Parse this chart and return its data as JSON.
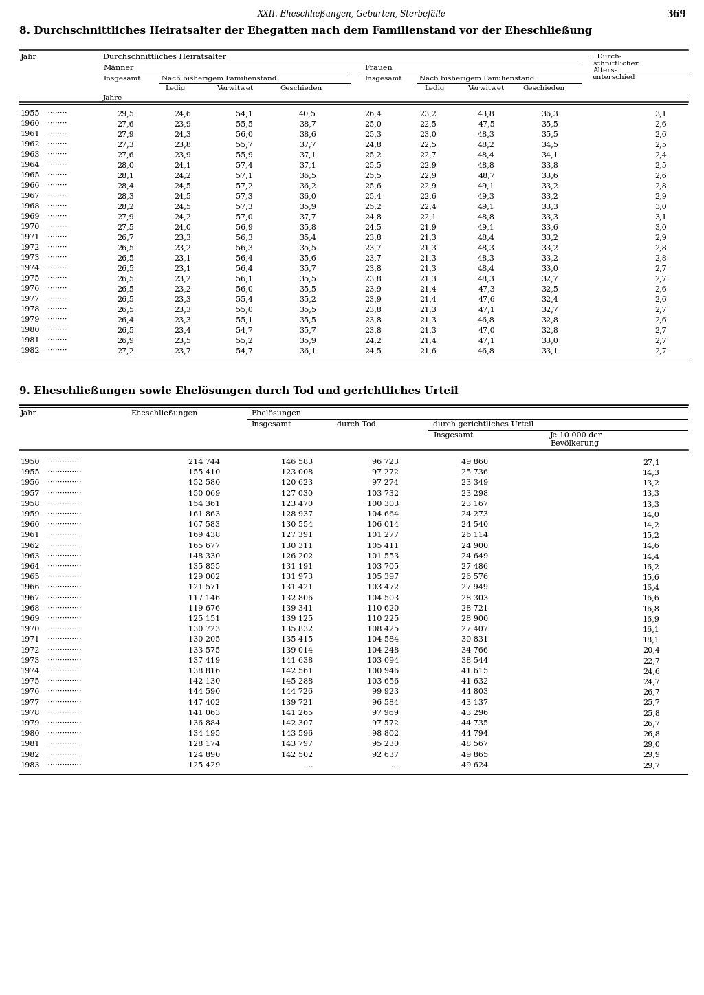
{
  "page_header": "XXII. Eheschließungen, Geburten, Sterbefälle",
  "page_number": "369",
  "table1_title": "8. Durchschnittliches Heiratsalter der Ehegatten nach dem Familienstand vor der Eheschließung",
  "table1_data": [
    [
      "1955",
      "29,5",
      "24,6",
      "54,1",
      "40,5",
      "26,4",
      "23,2",
      "43,8",
      "36,3",
      "3,1"
    ],
    [
      "1960",
      "27,6",
      "23,9",
      "55,5",
      "38,7",
      "25,0",
      "22,5",
      "47,5",
      "35,5",
      "2,6"
    ],
    [
      "1961",
      "27,9",
      "24,3",
      "56,0",
      "38,6",
      "25,3",
      "23,0",
      "48,3",
      "35,5",
      "2,6"
    ],
    [
      "1962",
      "27,3",
      "23,8",
      "55,7",
      "37,7",
      "24,8",
      "22,5",
      "48,2",
      "34,5",
      "2,5"
    ],
    [
      "1963",
      "27,6",
      "23,9",
      "55,9",
      "37,1",
      "25,2",
      "22,7",
      "48,4",
      "34,1",
      "2,4"
    ],
    [
      "1964",
      "28,0",
      "24,1",
      "57,4",
      "37,1",
      "25,5",
      "22,9",
      "48,8",
      "33,8",
      "2,5"
    ],
    [
      "1965",
      "28,1",
      "24,2",
      "57,1",
      "36,5",
      "25,5",
      "22,9",
      "48,7",
      "33,6",
      "2,6"
    ],
    [
      "1966",
      "28,4",
      "24,5",
      "57,2",
      "36,2",
      "25,6",
      "22,9",
      "49,1",
      "33,2",
      "2,8"
    ],
    [
      "1967",
      "28,3",
      "24,5",
      "57,3",
      "36,0",
      "25,4",
      "22,6",
      "49,3",
      "33,2",
      "2,9"
    ],
    [
      "1968",
      "28,2",
      "24,5",
      "57,3",
      "35,9",
      "25,2",
      "22,4",
      "49,1",
      "33,3",
      "3,0"
    ],
    [
      "1969",
      "27,9",
      "24,2",
      "57,0",
      "37,7",
      "24,8",
      "22,1",
      "48,8",
      "33,3",
      "3,1"
    ],
    [
      "1970",
      "27,5",
      "24,0",
      "56,9",
      "35,8",
      "24,5",
      "21,9",
      "49,1",
      "33,6",
      "3,0"
    ],
    [
      "1971",
      "26,7",
      "23,3",
      "56,3",
      "35,4",
      "23,8",
      "21,3",
      "48,4",
      "33,2",
      "2,9"
    ],
    [
      "1972",
      "26,5",
      "23,2",
      "56,3",
      "35,5",
      "23,7",
      "21,3",
      "48,3",
      "33,2",
      "2,8"
    ],
    [
      "1973",
      "26,5",
      "23,1",
      "56,4",
      "35,6",
      "23,7",
      "21,3",
      "48,3",
      "33,2",
      "2,8"
    ],
    [
      "1974",
      "26,5",
      "23,1",
      "56,4",
      "35,7",
      "23,8",
      "21,3",
      "48,4",
      "33,0",
      "2,7"
    ],
    [
      "1975",
      "26,5",
      "23,2",
      "56,1",
      "35,5",
      "23,8",
      "21,3",
      "48,3",
      "32,7",
      "2,7"
    ],
    [
      "1976",
      "26,5",
      "23,2",
      "56,0",
      "35,5",
      "23,9",
      "21,4",
      "47,3",
      "32,5",
      "2,6"
    ],
    [
      "1977",
      "26,5",
      "23,3",
      "55,4",
      "35,2",
      "23,9",
      "21,4",
      "47,6",
      "32,4",
      "2,6"
    ],
    [
      "1978",
      "26,5",
      "23,3",
      "55,0",
      "35,5",
      "23,8",
      "21,3",
      "47,1",
      "32,7",
      "2,7"
    ],
    [
      "1979",
      "26,4",
      "23,3",
      "55,1",
      "35,5",
      "23,8",
      "21,3",
      "46,8",
      "32,8",
      "2,6"
    ],
    [
      "1980",
      "26,5",
      "23,4",
      "54,7",
      "35,7",
      "23,8",
      "21,3",
      "47,0",
      "32,8",
      "2,7"
    ],
    [
      "1981",
      "26,9",
      "23,5",
      "55,2",
      "35,9",
      "24,2",
      "21,4",
      "47,1",
      "33,0",
      "2,7"
    ],
    [
      "1982",
      "27,2",
      "23,7",
      "54,7",
      "36,1",
      "24,5",
      "21,6",
      "46,8",
      "33,1",
      "2,7"
    ]
  ],
  "table2_title": "9. Eheschließungen sowie Ehelösungen durch Tod und gerichtliches Urteil",
  "table2_data": [
    [
      "1950",
      "214 744",
      "146 583",
      "96 723",
      "49 860",
      "27,1"
    ],
    [
      "1955",
      "155 410",
      "123 008",
      "97 272",
      "25 736",
      "14,3"
    ],
    [
      "1956",
      "152 580",
      "120 623",
      "97 274",
      "23 349",
      "13,2"
    ],
    [
      "1957",
      "150 069",
      "127 030",
      "103 732",
      "23 298",
      "13,3"
    ],
    [
      "1958",
      "154 361",
      "123 470",
      "100 303",
      "23 167",
      "13,3"
    ],
    [
      "1959",
      "161 863",
      "128 937",
      "104 664",
      "24 273",
      "14,0"
    ],
    [
      "1960",
      "167 583",
      "130 554",
      "106 014",
      "24 540",
      "14,2"
    ],
    [
      "1961",
      "169 438",
      "127 391",
      "101 277",
      "26 114",
      "15,2"
    ],
    [
      "1962",
      "165 677",
      "130 311",
      "105 411",
      "24 900",
      "14,6"
    ],
    [
      "1963",
      "148 330",
      "126 202",
      "101 553",
      "24 649",
      "14,4"
    ],
    [
      "1964",
      "135 855",
      "131 191",
      "103 705",
      "27 486",
      "16,2"
    ],
    [
      "1965",
      "129 002",
      "131 973",
      "105 397",
      "26 576",
      "15,6"
    ],
    [
      "1966",
      "121 571",
      "131 421",
      "103 472",
      "27 949",
      "16,4"
    ],
    [
      "1967",
      "117 146",
      "132 806",
      "104 503",
      "28 303",
      "16,6"
    ],
    [
      "1968",
      "119 676",
      "139 341",
      "110 620",
      "28 721",
      "16,8"
    ],
    [
      "1969",
      "125 151",
      "139 125",
      "110 225",
      "28 900",
      "16,9"
    ],
    [
      "1970",
      "130 723",
      "135 832",
      "108 425",
      "27 407",
      "16,1"
    ],
    [
      "1971",
      "130 205",
      "135 415",
      "104 584",
      "30 831",
      "18,1"
    ],
    [
      "1972",
      "133 575",
      "139 014",
      "104 248",
      "34 766",
      "20,4"
    ],
    [
      "1973",
      "137 419",
      "141 638",
      "103 094",
      "38 544",
      "22,7"
    ],
    [
      "1974",
      "138 816",
      "142 561",
      "100 946",
      "41 615",
      "24,6"
    ],
    [
      "1975",
      "142 130",
      "145 288",
      "103 656",
      "41 632",
      "24,7"
    ],
    [
      "1976",
      "144 590",
      "144 726",
      "99 923",
      "44 803",
      "26,7"
    ],
    [
      "1977",
      "147 402",
      "139 721",
      "96 584",
      "43 137",
      "25,7"
    ],
    [
      "1978",
      "141 063",
      "141 265",
      "97 969",
      "43 296",
      "25,8"
    ],
    [
      "1979",
      "136 884",
      "142 307",
      "97 572",
      "44 735",
      "26,7"
    ],
    [
      "1980",
      "134 195",
      "143 596",
      "98 802",
      "44 794",
      "26,8"
    ],
    [
      "1981",
      "128 174",
      "143 797",
      "95 230",
      "48 567",
      "29,0"
    ],
    [
      "1982",
      "124 890",
      "142 502",
      "92 637",
      "49 865",
      "29,9"
    ],
    [
      "1983",
      "125 429",
      "...",
      "...",
      "49 624",
      "29,7"
    ]
  ]
}
